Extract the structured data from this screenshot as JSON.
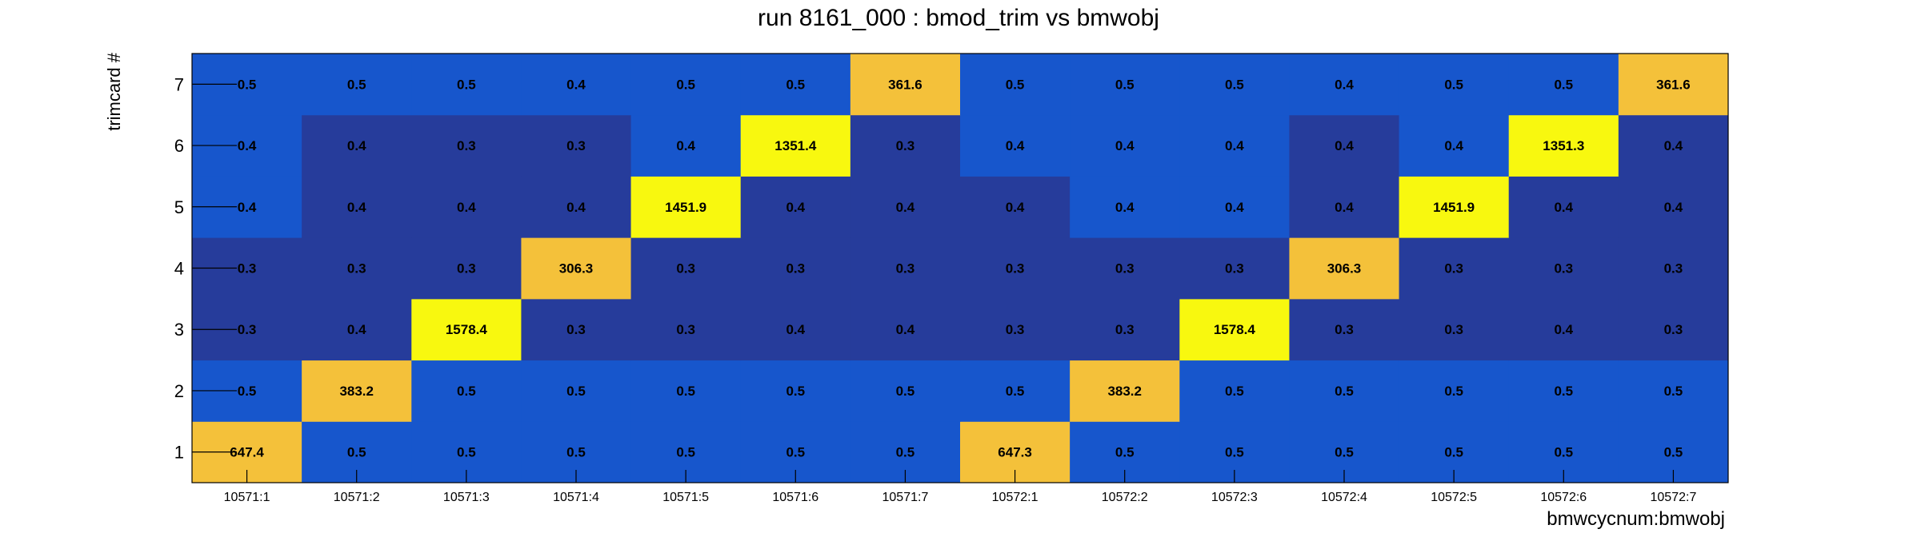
{
  "chart_data": {
    "type": "heatmap",
    "title": "run 8161_000 : bmod_trim vs bmwobj",
    "xlabel": "bmwcycnum:bmwobj",
    "ylabel": "trimcard #",
    "x_categories": [
      "10571:1",
      "10571:2",
      "10571:3",
      "10571:4",
      "10571:5",
      "10571:6",
      "10571:7",
      "10572:1",
      "10572:2",
      "10572:3",
      "10572:4",
      "10572:5",
      "10572:6",
      "10572:7"
    ],
    "y_categories": [
      "1",
      "2",
      "3",
      "4",
      "5",
      "6",
      "7"
    ],
    "values": [
      [
        647.4,
        0.5,
        0.5,
        0.5,
        0.5,
        0.5,
        0.5,
        647.3,
        0.5,
        0.5,
        0.5,
        0.5,
        0.5,
        0.5
      ],
      [
        0.5,
        383.2,
        0.5,
        0.5,
        0.5,
        0.5,
        0.5,
        0.5,
        383.2,
        0.5,
        0.5,
        0.5,
        0.5,
        0.5
      ],
      [
        0.3,
        0.4,
        1578.4,
        0.3,
        0.3,
        0.4,
        0.4,
        0.3,
        0.3,
        1578.4,
        0.3,
        0.3,
        0.4,
        0.3
      ],
      [
        0.3,
        0.3,
        0.3,
        306.3,
        0.3,
        0.3,
        0.3,
        0.3,
        0.3,
        0.3,
        306.3,
        0.3,
        0.3,
        0.3
      ],
      [
        0.4,
        0.4,
        0.4,
        0.4,
        1451.9,
        0.4,
        0.4,
        0.4,
        0.4,
        0.4,
        0.4,
        1451.9,
        0.4,
        0.4
      ],
      [
        0.4,
        0.4,
        0.3,
        0.3,
        0.4,
        1351.4,
        0.3,
        0.4,
        0.4,
        0.4,
        0.4,
        0.4,
        1351.3,
        0.4
      ],
      [
        0.5,
        0.5,
        0.5,
        0.4,
        0.5,
        0.5,
        361.6,
        0.5,
        0.5,
        0.5,
        0.4,
        0.5,
        0.5,
        361.6
      ]
    ],
    "cell_colors": [
      [
        "#f4c13a",
        "#1756cc",
        "#1756cc",
        "#1756cc",
        "#1756cc",
        "#1756cc",
        "#1756cc",
        "#f4c13a",
        "#1756cc",
        "#1756cc",
        "#1756cc",
        "#1756cc",
        "#1756cc",
        "#1756cc"
      ],
      [
        "#1756cc",
        "#f4c13a",
        "#1756cc",
        "#1756cc",
        "#1756cc",
        "#1756cc",
        "#1756cc",
        "#1756cc",
        "#f4c13a",
        "#1756cc",
        "#1756cc",
        "#1756cc",
        "#1756cc",
        "#1756cc"
      ],
      [
        "#263c9b",
        "#263c9b",
        "#f8f80f",
        "#263c9b",
        "#263c9b",
        "#263c9b",
        "#263c9b",
        "#263c9b",
        "#263c9b",
        "#f8f80f",
        "#263c9b",
        "#263c9b",
        "#263c9b",
        "#263c9b"
      ],
      [
        "#263c9b",
        "#263c9b",
        "#263c9b",
        "#f4c13a",
        "#263c9b",
        "#263c9b",
        "#263c9b",
        "#263c9b",
        "#263c9b",
        "#263c9b",
        "#f4c13a",
        "#263c9b",
        "#263c9b",
        "#263c9b"
      ],
      [
        "#1756cc",
        "#263c9b",
        "#263c9b",
        "#263c9b",
        "#f8f80f",
        "#263c9b",
        "#263c9b",
        "#263c9b",
        "#1756cc",
        "#1756cc",
        "#263c9b",
        "#f8f80f",
        "#263c9b",
        "#263c9b"
      ],
      [
        "#1756cc",
        "#263c9b",
        "#263c9b",
        "#263c9b",
        "#1756cc",
        "#f8f80f",
        "#263c9b",
        "#1756cc",
        "#1756cc",
        "#1756cc",
        "#263c9b",
        "#1756cc",
        "#f8f80f",
        "#263c9b"
      ],
      [
        "#1756cc",
        "#1756cc",
        "#1756cc",
        "#1756cc",
        "#1756cc",
        "#1756cc",
        "#f4c13a",
        "#1756cc",
        "#1756cc",
        "#1756cc",
        "#1756cc",
        "#1756cc",
        "#1756cc",
        "#f4c13a"
      ]
    ],
    "grid": false,
    "legend": "none"
  },
  "colors": {
    "background": "#ffffff",
    "axis": "#000000",
    "text": "#000000"
  }
}
